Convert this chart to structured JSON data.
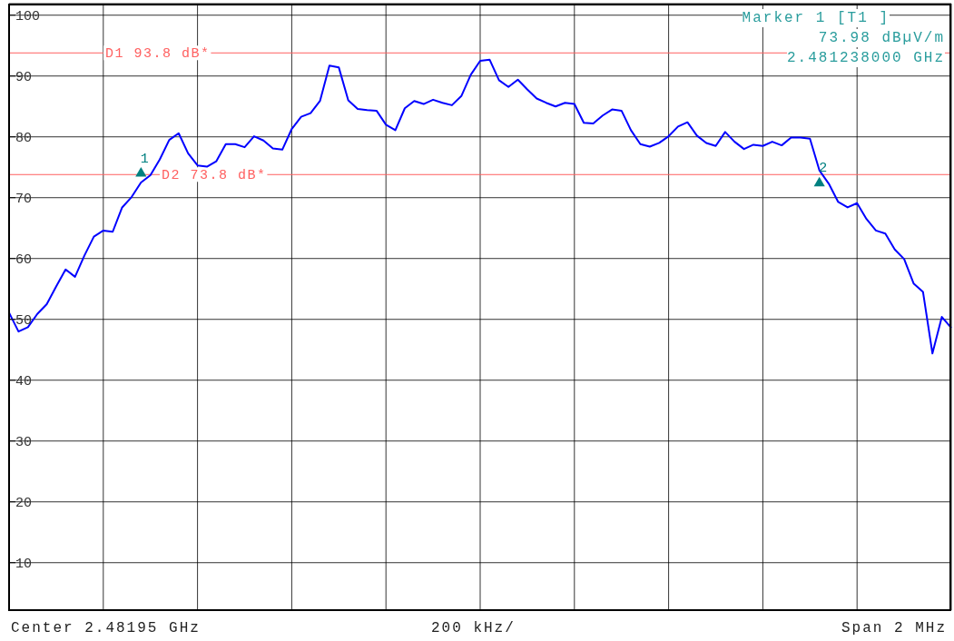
{
  "chart_data": {
    "type": "line",
    "categories": [
      null,
      null,
      null,
      null,
      null,
      null,
      null,
      null,
      null,
      null,
      null,
      null,
      null,
      null,
      null,
      null,
      null,
      null,
      null,
      null,
      null,
      null,
      null,
      null,
      null,
      null,
      null,
      null,
      null,
      null,
      null,
      null,
      null,
      null,
      null,
      null,
      null,
      null,
      null,
      null,
      null,
      null,
      null,
      null,
      null,
      null,
      null,
      null,
      null,
      null,
      null,
      null,
      null,
      null,
      null,
      null,
      null,
      null,
      null,
      null,
      null,
      null,
      null,
      null,
      null,
      null,
      null,
      null,
      null,
      null,
      null,
      null,
      null,
      null,
      null,
      null,
      null,
      null,
      null,
      null,
      null,
      null,
      null,
      null,
      null,
      null,
      null,
      null,
      null,
      null,
      null,
      null,
      null,
      null,
      null,
      null,
      null,
      null,
      null,
      null,
      null
    ],
    "ylim": [
      2.2,
      101.9
    ],
    "yticks": [
      10,
      20,
      30,
      40,
      50,
      60,
      70,
      80,
      90,
      100
    ],
    "tick_labels": "y",
    "grid": true,
    "series": [
      {
        "color": "#0000ff",
        "marker": "none",
        "line_style": "solid",
        "values": [
          51.1,
          48.0,
          48.7,
          50.9,
          52.5,
          55.4,
          58.2,
          57.0,
          60.5,
          63.6,
          64.6,
          64.4,
          68.4,
          70.1,
          72.5,
          73.7,
          76.3,
          79.5,
          80.6,
          77.3,
          75.3,
          75.1,
          76.0,
          78.8,
          78.8,
          78.3,
          80.1,
          79.4,
          78.1,
          77.9,
          81.3,
          83.3,
          83.9,
          85.9,
          91.7,
          91.4,
          86.0,
          84.6,
          84.4,
          84.3,
          82.0,
          81.1,
          84.7,
          85.9,
          85.4,
          86.1,
          85.6,
          85.2,
          86.7,
          90.2,
          92.5,
          92.7,
          89.3,
          88.2,
          89.4,
          87.8,
          86.3,
          85.6,
          85.0,
          85.6,
          85.4,
          82.3,
          82.2,
          83.5,
          84.5,
          84.3,
          81.1,
          78.8,
          78.4,
          79.0,
          80.1,
          81.7,
          82.4,
          80.2,
          79.0,
          78.5,
          80.8,
          79.2,
          78.0,
          78.7,
          78.5,
          79.2,
          78.6,
          79.9,
          79.9,
          79.7,
          74.5,
          72.3,
          69.3,
          68.4,
          69.1,
          66.5,
          64.6,
          64.1,
          61.5,
          59.9,
          55.9,
          54.5,
          44.4,
          50.4,
          48.6
        ]
      },
      {
        "type": "scatter",
        "name": "1",
        "color": "#008080",
        "marker": "triangle",
        "values": [
          null,
          null,
          null,
          null,
          null,
          null,
          null,
          null,
          null,
          null,
          null,
          null,
          null,
          null,
          73.98,
          null,
          null,
          null,
          null,
          null,
          null,
          null,
          null,
          null,
          null,
          null,
          null,
          null,
          null,
          null,
          null,
          null,
          null,
          null,
          null,
          null,
          null,
          null,
          null,
          null,
          null,
          null,
          null,
          null,
          null,
          null,
          null,
          null,
          null,
          null,
          null,
          null,
          null,
          null,
          null,
          null,
          null,
          null,
          null,
          null,
          null,
          null,
          null,
          null,
          null,
          null,
          null,
          null,
          null,
          null,
          null,
          null,
          null,
          null,
          null,
          null,
          null,
          null,
          null,
          null,
          null,
          null,
          null,
          null,
          null,
          null,
          null,
          null,
          null,
          null,
          null,
          null,
          null,
          null,
          null,
          null,
          null,
          null,
          null,
          null,
          null
        ]
      },
      {
        "type": "scatter",
        "name": "2",
        "color": "#008080",
        "marker": "triangle",
        "values": [
          null,
          null,
          null,
          null,
          null,
          null,
          null,
          null,
          null,
          null,
          null,
          null,
          null,
          null,
          null,
          null,
          null,
          null,
          null,
          null,
          null,
          null,
          null,
          null,
          null,
          null,
          null,
          null,
          null,
          null,
          null,
          null,
          null,
          null,
          null,
          null,
          null,
          null,
          null,
          null,
          null,
          null,
          null,
          null,
          null,
          null,
          null,
          null,
          null,
          null,
          null,
          null,
          null,
          null,
          null,
          null,
          null,
          null,
          null,
          null,
          null,
          null,
          null,
          null,
          null,
          null,
          null,
          null,
          null,
          null,
          null,
          null,
          null,
          null,
          null,
          null,
          null,
          null,
          null,
          null,
          null,
          null,
          null,
          null,
          null,
          null,
          72.4,
          null,
          null,
          null,
          null,
          null,
          null,
          null,
          null,
          null,
          null,
          null,
          null,
          null,
          null
        ]
      }
    ],
    "ref_lines": [
      {
        "axis": "y",
        "value": 93.8,
        "label": "D1 93.8 dB*",
        "color": "#ff6060"
      },
      {
        "axis": "y",
        "value": 73.8,
        "label": "D2 73.8 dB*",
        "color": "#ff6060"
      }
    ],
    "annotations": [
      "Marker 1 [T1 ]",
      "73.98 dBµV/m",
      "2.481238000 GHz",
      "Center 2.48195 GHz",
      "200 kHz/",
      "Span 2 MHz"
    ]
  }
}
